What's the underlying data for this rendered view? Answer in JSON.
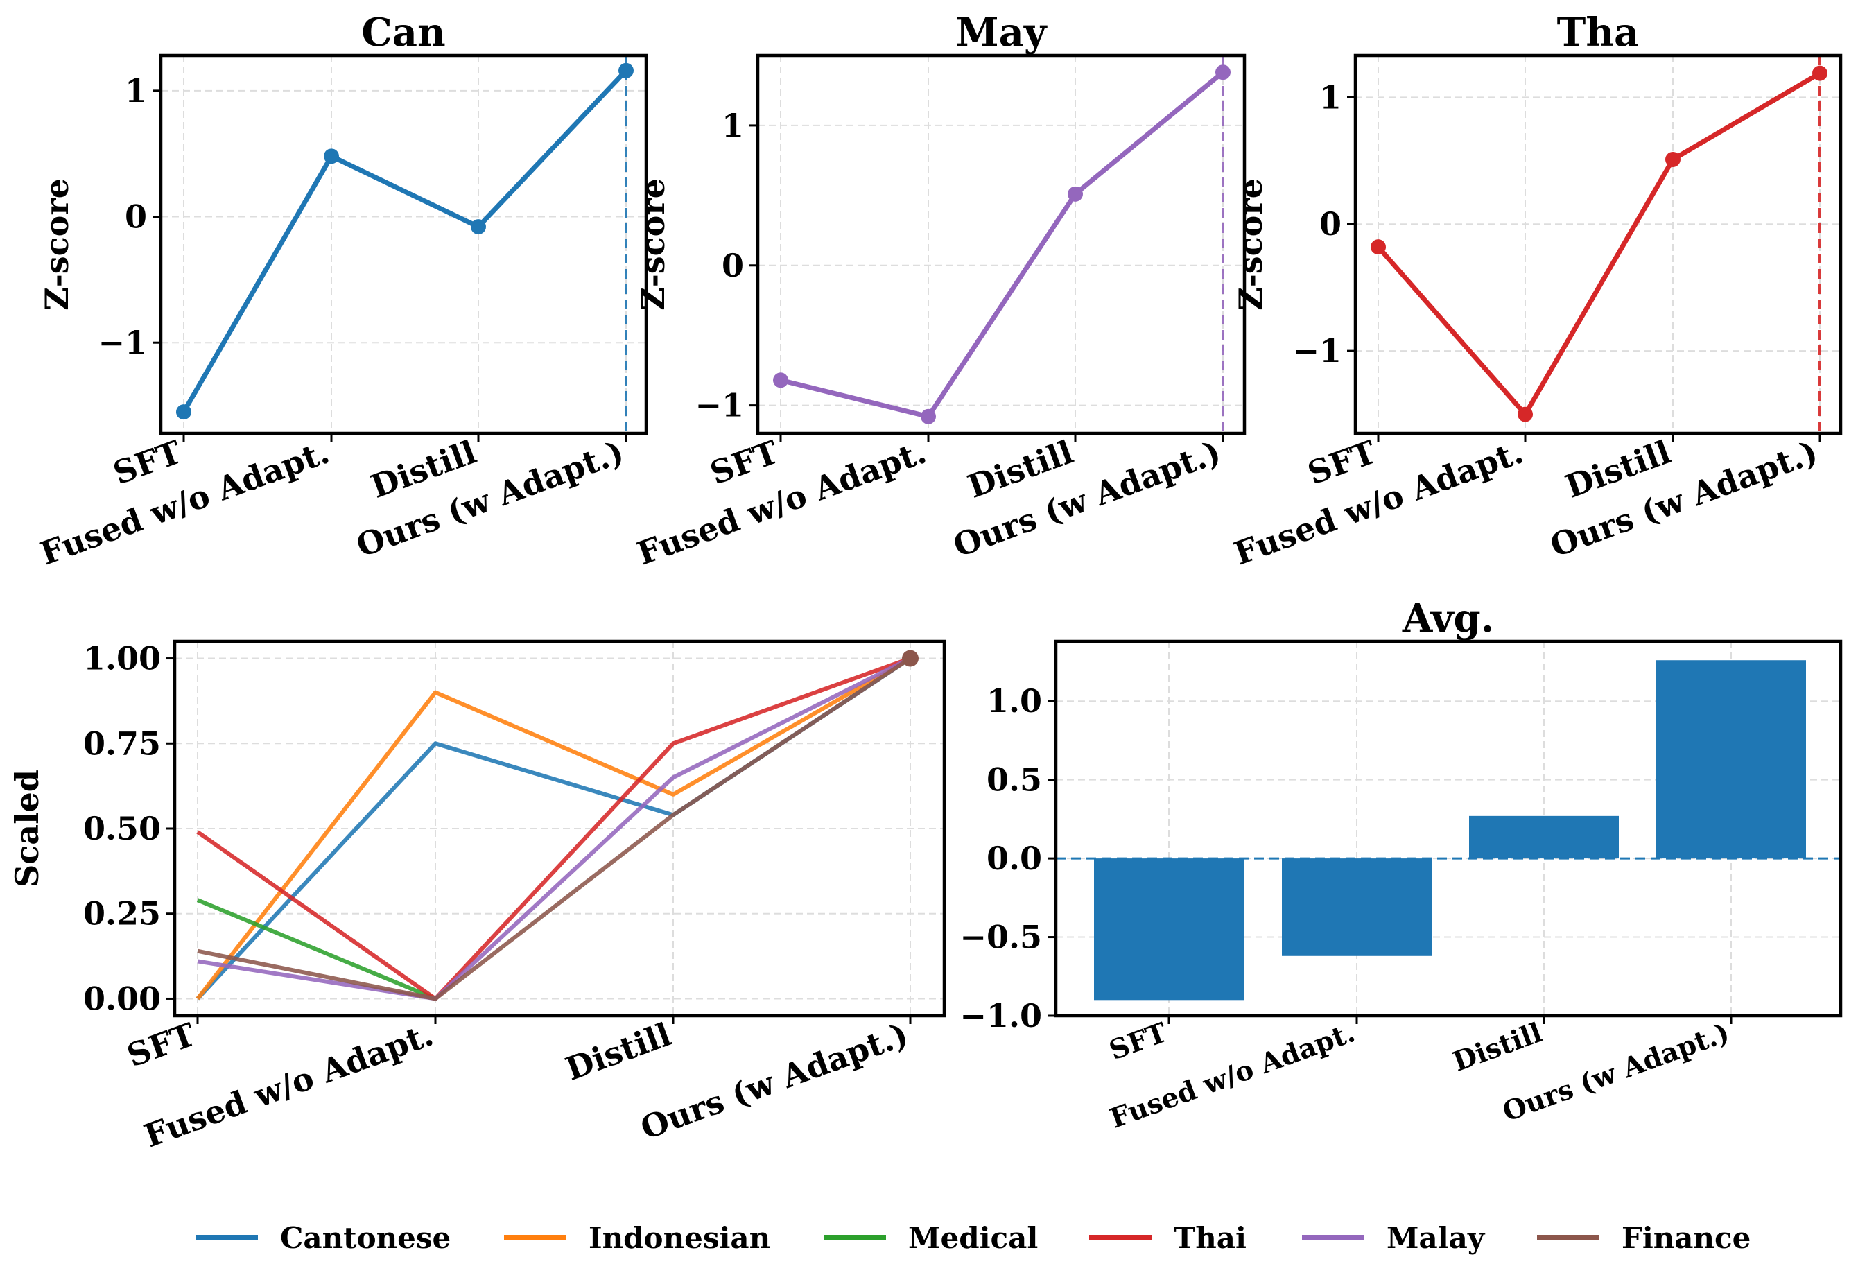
{
  "categories": [
    "SFT",
    "Fused w/o Adapt.",
    "Distill",
    "Ours (w Adapt.)"
  ],
  "chart_data": [
    {
      "type": "line",
      "title": "Can",
      "xlabel": "",
      "ylabel": "Z-score",
      "ylim": [
        -1.72,
        1.28
      ],
      "yticks": [
        -1,
        0,
        1
      ],
      "ytick_labels": [
        "−1",
        "0",
        "1"
      ],
      "grid": true,
      "color": "#1f77b4",
      "values": [
        -1.55,
        0.48,
        -0.08,
        1.16
      ],
      "highlight_category": "Ours (w Adapt.)"
    },
    {
      "type": "line",
      "title": "May",
      "xlabel": "",
      "ylabel": "Z-score",
      "ylim": [
        -1.2,
        1.5
      ],
      "yticks": [
        -1,
        0,
        1
      ],
      "ytick_labels": [
        "−1",
        "0",
        "1"
      ],
      "grid": true,
      "color": "#9467bd",
      "values": [
        -0.82,
        -1.08,
        0.51,
        1.38
      ],
      "highlight_category": "Ours (w Adapt.)"
    },
    {
      "type": "line",
      "title": "Tha",
      "xlabel": "",
      "ylabel": "Z-score",
      "ylim": [
        -1.65,
        1.33
      ],
      "yticks": [
        -1,
        0,
        1
      ],
      "ytick_labels": [
        "−1",
        "0",
        "1"
      ],
      "grid": true,
      "color": "#d62728",
      "values": [
        -0.18,
        -1.5,
        0.51,
        1.19
      ],
      "highlight_category": "Ours (w Adapt.)"
    },
    {
      "type": "line",
      "title": "",
      "xlabel": "",
      "ylabel": "Scaled",
      "ylim": [
        -0.05,
        1.05
      ],
      "yticks": [
        0,
        0.25,
        0.5,
        0.75,
        1.0
      ],
      "ytick_labels": [
        "0.00",
        "0.25",
        "0.50",
        "0.75",
        "1.00"
      ],
      "grid": true,
      "series": [
        {
          "name": "Cantonese",
          "color": "#1f77b4",
          "values": [
            0.0,
            0.75,
            0.54,
            1.0
          ]
        },
        {
          "name": "Indonesian",
          "color": "#ff7f0e",
          "values": [
            0.0,
            0.9,
            0.6,
            1.0
          ]
        },
        {
          "name": "Medical",
          "color": "#2ca02c",
          "values": [
            0.29,
            0.0,
            null,
            null
          ]
        },
        {
          "name": "Thai",
          "color": "#d62728",
          "values": [
            0.49,
            0.0,
            0.75,
            1.0
          ]
        },
        {
          "name": "Malay",
          "color": "#9467bd",
          "values": [
            0.11,
            0.0,
            0.65,
            1.0
          ]
        },
        {
          "name": "Finance",
          "color": "#8c564b",
          "values": [
            0.14,
            0.0,
            0.54,
            1.0
          ]
        }
      ],
      "final_point_color": "#8c564b"
    },
    {
      "type": "bar",
      "title": "Avg.",
      "xlabel": "",
      "ylabel": "",
      "ylim": [
        -1.0,
        1.38
      ],
      "yticks": [
        -1.0,
        -0.5,
        0.0,
        0.5,
        1.0
      ],
      "ytick_labels": [
        "−1.0",
        "−0.5",
        "0.0",
        "0.5",
        "1.0"
      ],
      "grid": true,
      "color": "#1f77b4",
      "values": [
        -0.9,
        -0.62,
        0.27,
        1.26
      ],
      "zero_line": true
    }
  ],
  "legend": {
    "placement": "bottom",
    "entries": [
      {
        "label": "Cantonese",
        "color": "#1f77b4"
      },
      {
        "label": "Indonesian",
        "color": "#ff7f0e"
      },
      {
        "label": "Medical",
        "color": "#2ca02c"
      },
      {
        "label": "Thai",
        "color": "#d62728"
      },
      {
        "label": "Malay",
        "color": "#9467bd"
      },
      {
        "label": "Finance",
        "color": "#8c564b"
      }
    ]
  }
}
